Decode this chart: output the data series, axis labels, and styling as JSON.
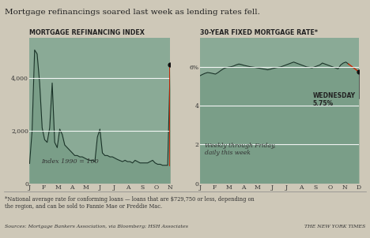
{
  "title": "Mortgage refinancings soared last week as lending rates fell.",
  "bg_color": "#cec8b8",
  "chart_bg": "#8aaa96",
  "left_title": "MORTGAGE REFINANCING INDEX",
  "right_title": "30-YEAR FIXED MORTGAGE RATE*",
  "left_xlabel_note": "Index 1990 = 100",
  "right_note": "Weekly through Friday,\ndaily this week",
  "footnote": "*National average rate for conforming loans — loans that are $729,750 or less, depending on\nthe region, and can be sold to Fannie Mae or Freddie Mac.",
  "source": "Sources: Mortgage Bankers Association, via Bloomberg; HSH Associates",
  "nyt": "THE NEW YORK TIMES",
  "left_xticks": [
    "J",
    "F",
    "M",
    "A",
    "M",
    "J",
    "J",
    "A",
    "S",
    "O",
    "N"
  ],
  "right_xticks": [
    "J",
    "F",
    "M",
    "A",
    "M",
    "J",
    "J",
    "A",
    "S",
    "O",
    "N",
    "D"
  ],
  "left_ylim": [
    0,
    5500
  ],
  "right_ylim": [
    0,
    7.5
  ],
  "wednesday_label": "WEDNESDAY\n5.75%",
  "refi_data": [
    750,
    2000,
    5050,
    4900,
    3800,
    2100,
    1650,
    1550,
    2100,
    3800,
    1550,
    1350,
    2050,
    1850,
    1450,
    1350,
    1250,
    1150,
    1050,
    1050,
    1000,
    1000,
    950,
    900,
    870,
    870,
    820,
    1750,
    2050,
    1150,
    1050,
    1050,
    1000,
    1000,
    950,
    900,
    860,
    820,
    870,
    820,
    820,
    770,
    870,
    820,
    770,
    770,
    770,
    770,
    820,
    870,
    770,
    720,
    720,
    680,
    680,
    680,
    4500
  ],
  "rate_data": [
    5.55,
    5.62,
    5.68,
    5.72,
    5.7,
    5.67,
    5.64,
    5.72,
    5.82,
    5.91,
    5.97,
    6.0,
    6.02,
    6.06,
    6.12,
    6.16,
    6.13,
    6.09,
    6.06,
    6.03,
    6.01,
    5.99,
    5.96,
    5.94,
    5.91,
    5.89,
    5.86,
    5.89,
    5.93,
    5.96,
    5.99,
    6.01,
    6.06,
    6.11,
    6.16,
    6.21,
    6.26,
    6.21,
    6.16,
    6.11,
    6.06,
    6.01,
    5.99,
    5.96,
    6.01,
    6.06,
    6.11,
    6.21,
    6.16,
    6.11,
    6.06,
    6.01,
    5.96,
    5.91,
    6.11,
    6.21,
    6.26,
    6.16,
    6.06,
    5.96,
    5.86,
    5.75
  ],
  "line_color": "#1a3328",
  "fill_color": "#7a9e88",
  "red_color": "#cc2200",
  "dot_color": "#111111",
  "hline_color": "#ffffff",
  "dotted_color": "#999999"
}
